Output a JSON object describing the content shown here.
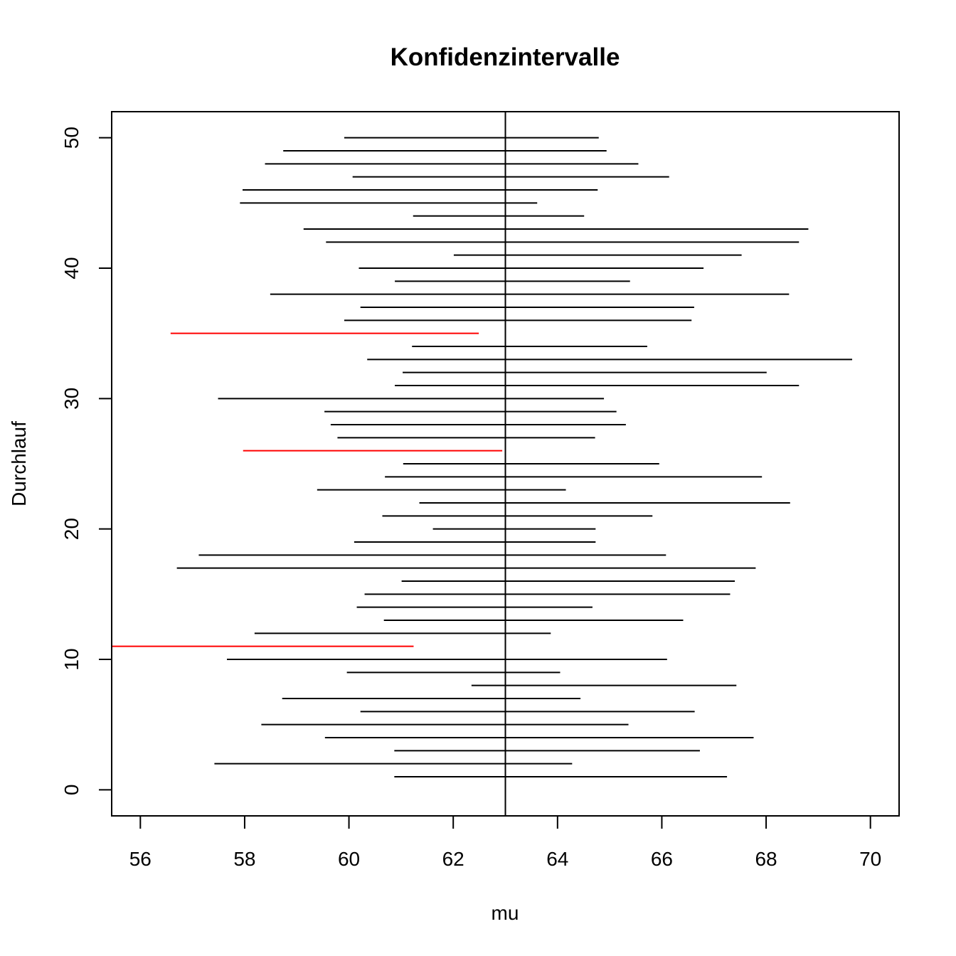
{
  "chart_data": {
    "type": "interval",
    "title": "Konfidenzintervalle",
    "xlabel": "mu",
    "ylabel": "Durchlauf",
    "xlim": [
      55.45,
      70.55
    ],
    "ylim": [
      -2,
      52
    ],
    "x_ticks": [
      "56",
      "58",
      "60",
      "62",
      "64",
      "66",
      "68",
      "70"
    ],
    "y_ticks": [
      "0",
      "10",
      "20",
      "30",
      "40",
      "50"
    ],
    "reference_line": {
      "x": 63
    },
    "colors": {
      "covering": "#000000",
      "missing": "#ff0000"
    },
    "intervals": [
      {
        "run": 1,
        "lower": 60.87,
        "upper": 67.25,
        "covers": true
      },
      {
        "run": 2,
        "lower": 57.42,
        "upper": 64.28,
        "covers": true
      },
      {
        "run": 3,
        "lower": 60.87,
        "upper": 66.73,
        "covers": true
      },
      {
        "run": 4,
        "lower": 59.54,
        "upper": 67.76,
        "covers": true
      },
      {
        "run": 5,
        "lower": 58.32,
        "upper": 65.36,
        "covers": true
      },
      {
        "run": 6,
        "lower": 60.22,
        "upper": 66.63,
        "covers": true
      },
      {
        "run": 7,
        "lower": 58.72,
        "upper": 64.44,
        "covers": true
      },
      {
        "run": 8,
        "lower": 62.35,
        "upper": 67.43,
        "covers": true
      },
      {
        "run": 9,
        "lower": 59.96,
        "upper": 64.05,
        "covers": true
      },
      {
        "run": 10,
        "lower": 57.66,
        "upper": 66.1,
        "covers": true
      },
      {
        "run": 11,
        "lower": 55.45,
        "upper": 61.24,
        "covers": false
      },
      {
        "run": 12,
        "lower": 58.19,
        "upper": 63.87,
        "covers": true
      },
      {
        "run": 13,
        "lower": 60.67,
        "upper": 66.41,
        "covers": true
      },
      {
        "run": 14,
        "lower": 60.15,
        "upper": 64.67,
        "covers": true
      },
      {
        "run": 15,
        "lower": 60.3,
        "upper": 67.31,
        "covers": true
      },
      {
        "run": 16,
        "lower": 61.01,
        "upper": 67.4,
        "covers": true
      },
      {
        "run": 17,
        "lower": 56.7,
        "upper": 67.8,
        "covers": true
      },
      {
        "run": 18,
        "lower": 57.12,
        "upper": 66.08,
        "covers": true
      },
      {
        "run": 19,
        "lower": 60.1,
        "upper": 64.73,
        "covers": true
      },
      {
        "run": 20,
        "lower": 61.61,
        "upper": 64.73,
        "covers": true
      },
      {
        "run": 21,
        "lower": 60.64,
        "upper": 65.82,
        "covers": true
      },
      {
        "run": 22,
        "lower": 61.35,
        "upper": 68.46,
        "covers": true
      },
      {
        "run": 23,
        "lower": 59.39,
        "upper": 64.16,
        "covers": true
      },
      {
        "run": 24,
        "lower": 60.69,
        "upper": 67.92,
        "covers": true
      },
      {
        "run": 25,
        "lower": 61.04,
        "upper": 65.95,
        "covers": true
      },
      {
        "run": 26,
        "lower": 57.97,
        "upper": 62.94,
        "covers": false
      },
      {
        "run": 27,
        "lower": 59.78,
        "upper": 64.72,
        "covers": true
      },
      {
        "run": 28,
        "lower": 59.65,
        "upper": 65.31,
        "covers": true
      },
      {
        "run": 29,
        "lower": 59.53,
        "upper": 65.13,
        "covers": true
      },
      {
        "run": 30,
        "lower": 57.49,
        "upper": 64.89,
        "covers": true
      },
      {
        "run": 31,
        "lower": 60.88,
        "upper": 68.63,
        "covers": true
      },
      {
        "run": 32,
        "lower": 61.03,
        "upper": 68.01,
        "covers": true
      },
      {
        "run": 33,
        "lower": 60.35,
        "upper": 69.65,
        "covers": true
      },
      {
        "run": 34,
        "lower": 61.21,
        "upper": 65.72,
        "covers": true
      },
      {
        "run": 35,
        "lower": 56.58,
        "upper": 62.49,
        "covers": false
      },
      {
        "run": 36,
        "lower": 59.91,
        "upper": 66.57,
        "covers": true
      },
      {
        "run": 37,
        "lower": 60.22,
        "upper": 66.62,
        "covers": true
      },
      {
        "run": 38,
        "lower": 58.49,
        "upper": 68.44,
        "covers": true
      },
      {
        "run": 39,
        "lower": 60.88,
        "upper": 65.39,
        "covers": true
      },
      {
        "run": 40,
        "lower": 60.19,
        "upper": 66.8,
        "covers": true
      },
      {
        "run": 41,
        "lower": 62.01,
        "upper": 67.53,
        "covers": true
      },
      {
        "run": 42,
        "lower": 59.56,
        "upper": 68.63,
        "covers": true
      },
      {
        "run": 43,
        "lower": 59.13,
        "upper": 68.81,
        "covers": true
      },
      {
        "run": 44,
        "lower": 61.23,
        "upper": 64.51,
        "covers": true
      },
      {
        "run": 45,
        "lower": 57.91,
        "upper": 63.61,
        "covers": true
      },
      {
        "run": 46,
        "lower": 57.96,
        "upper": 64.77,
        "covers": true
      },
      {
        "run": 47,
        "lower": 60.07,
        "upper": 66.14,
        "covers": true
      },
      {
        "run": 48,
        "lower": 58.39,
        "upper": 65.55,
        "covers": true
      },
      {
        "run": 49,
        "lower": 58.74,
        "upper": 64.94,
        "covers": true
      },
      {
        "run": 50,
        "lower": 59.91,
        "upper": 64.79,
        "covers": true
      }
    ]
  }
}
